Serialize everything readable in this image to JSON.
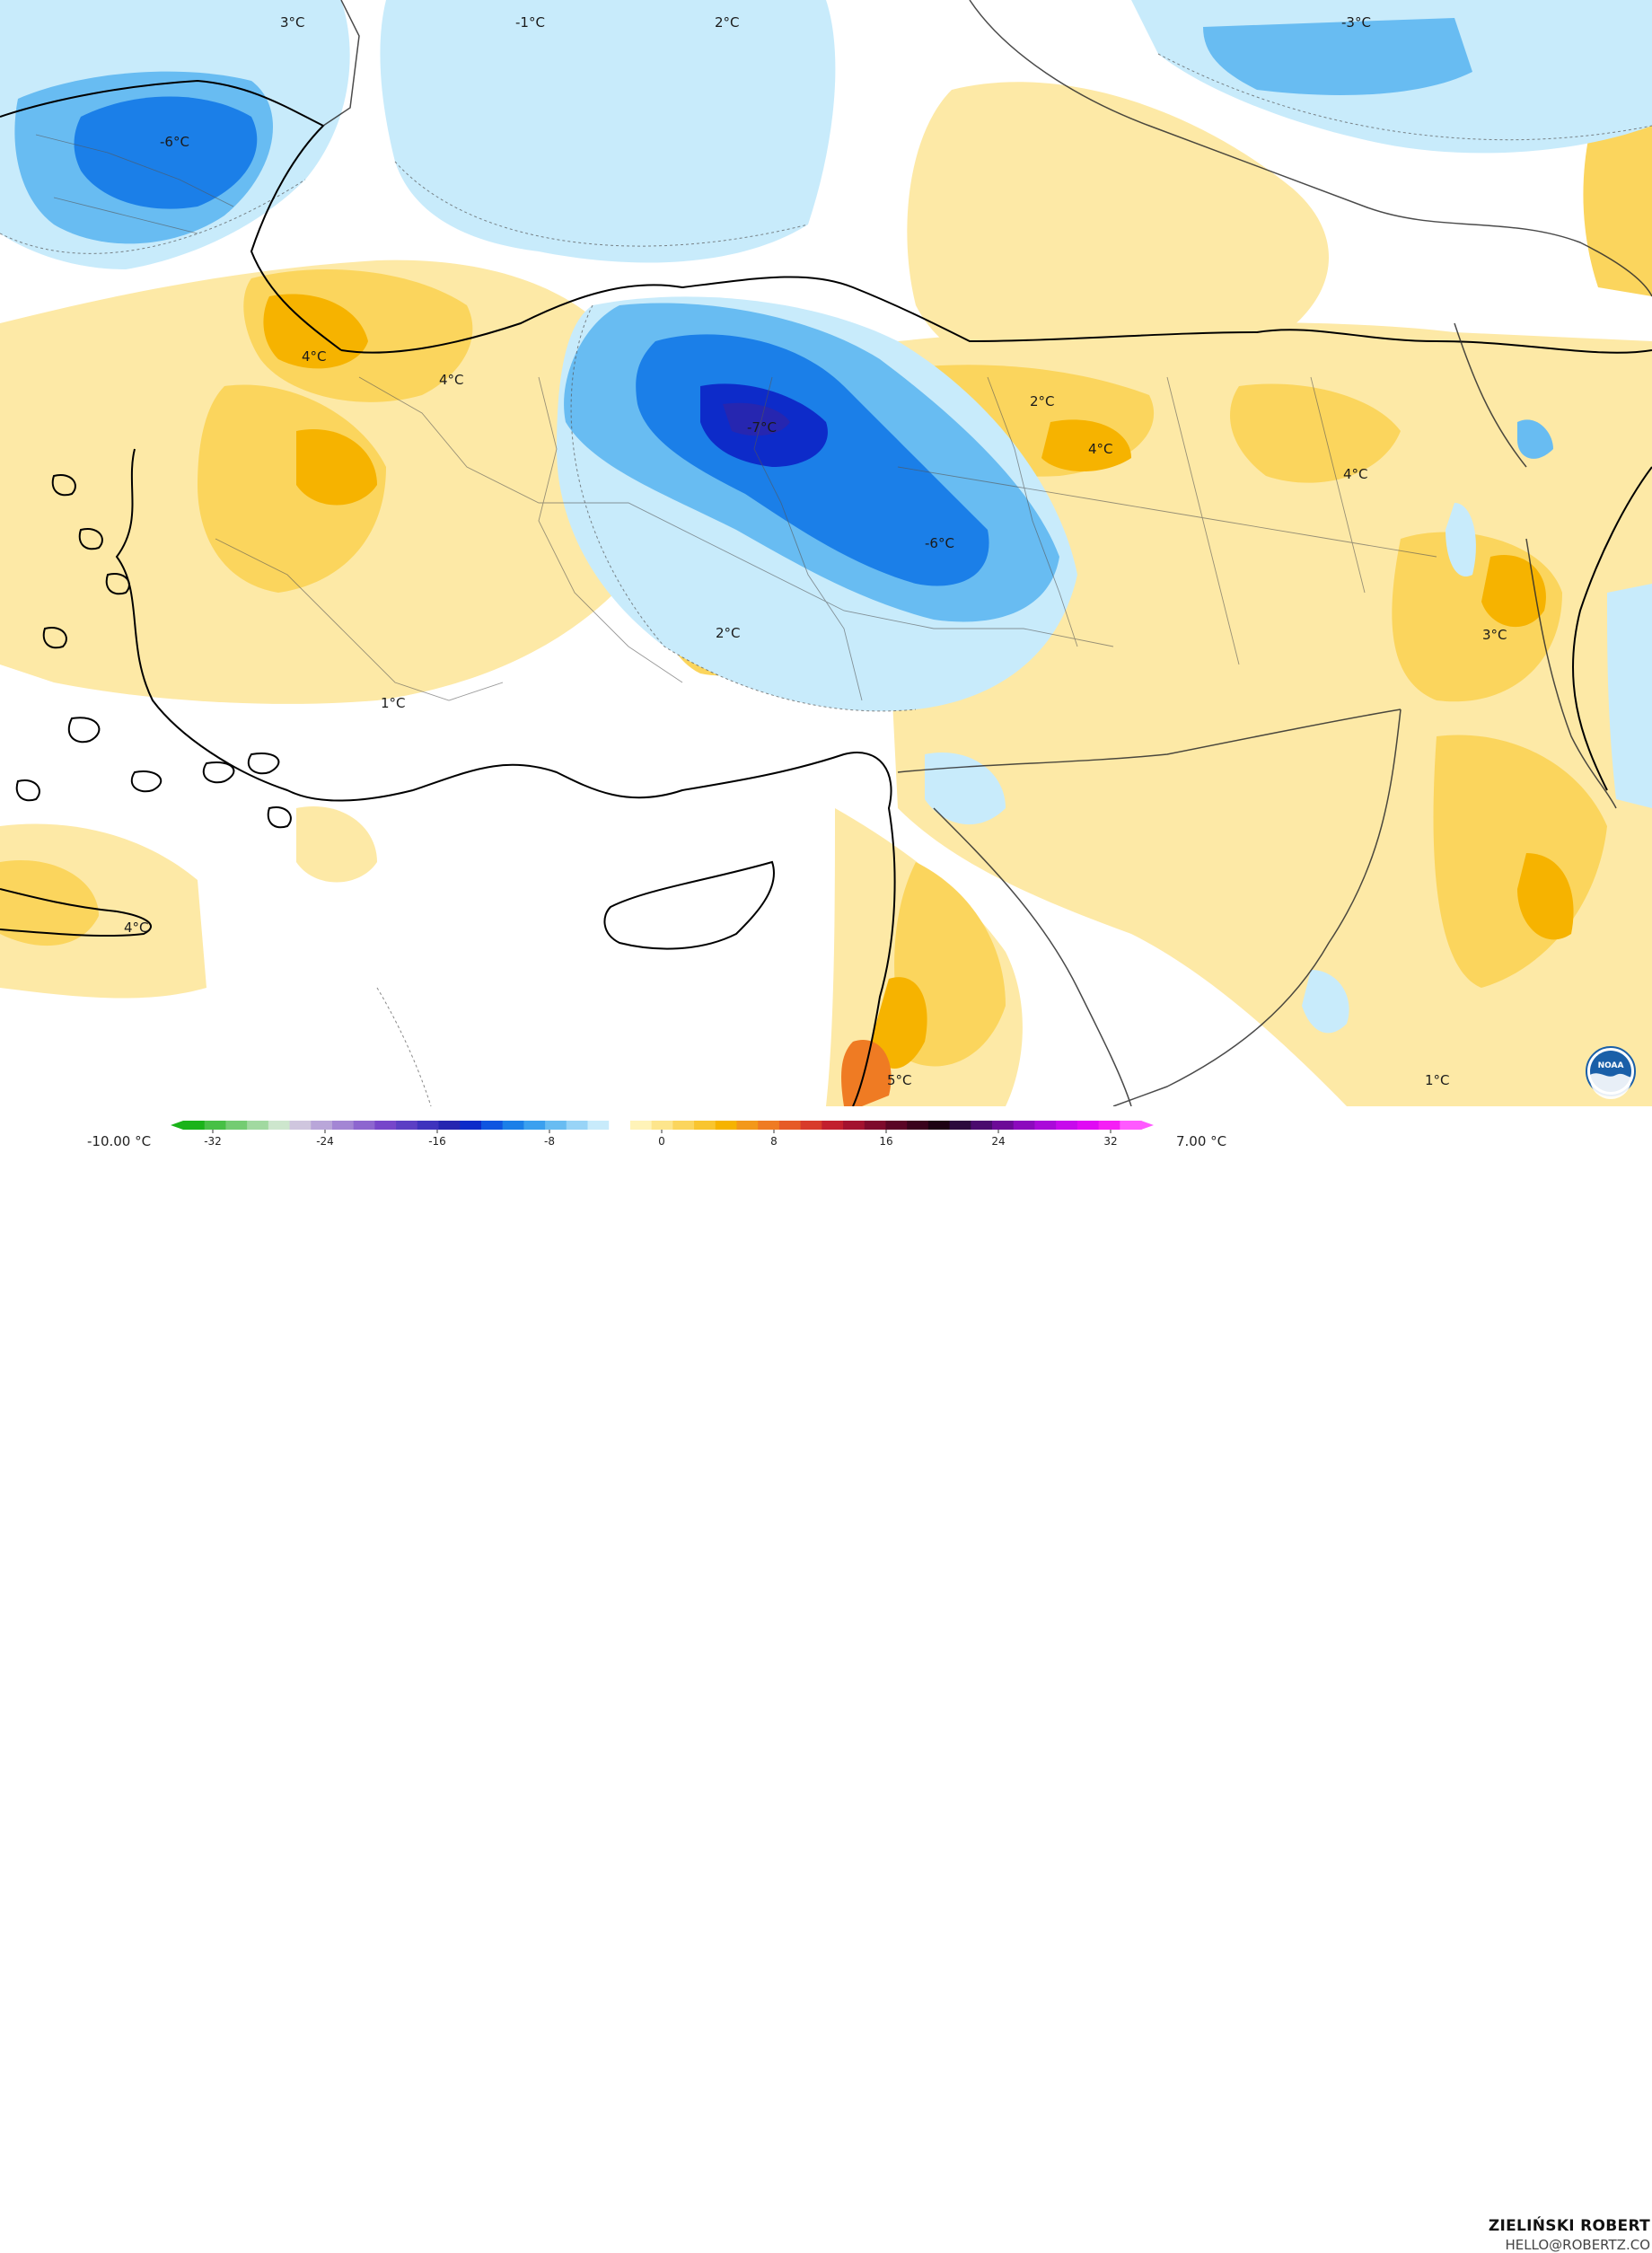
{
  "map_labels": [
    {
      "text": "3°C"
    },
    {
      "text": "-1°C"
    },
    {
      "text": "2°C"
    },
    {
      "text": "-3°C"
    },
    {
      "text": "-6°C"
    },
    {
      "text": "4°C"
    },
    {
      "text": "4°C"
    },
    {
      "text": "-7°C"
    },
    {
      "text": "2°C"
    },
    {
      "text": "4°C"
    },
    {
      "text": "4°C"
    },
    {
      "text": "-6°C"
    },
    {
      "text": "2°C"
    },
    {
      "text": "3°C"
    },
    {
      "text": "1°C"
    },
    {
      "text": "4°C"
    },
    {
      "text": "5°C"
    },
    {
      "text": "1°C"
    }
  ],
  "legend": {
    "min_label": "-10.00 °C",
    "max_label": "7.00 °C",
    "ticks": [
      "-32",
      "-24",
      "-16",
      "-8",
      "0",
      "8",
      "16",
      "24",
      "32"
    ],
    "colors": [
      "#1ab319",
      "#47c045",
      "#74cc72",
      "#a1d9a0",
      "#cde6cd",
      "#cfc6de",
      "#b9a6d9",
      "#a386d4",
      "#8d66cf",
      "#7746ca",
      "#5c3fc4",
      "#3f33bd",
      "#2626b0",
      "#0d2bc9",
      "#0f55e0",
      "#1b7fe8",
      "#3ba0ef",
      "#68bcf2",
      "#98d4f7",
      "#c8ebfb",
      "#ffffff",
      "#fff3b8",
      "#fde58c",
      "#fbd55d",
      "#f9c52f",
      "#f6b300",
      "#f3981a",
      "#ef7b23",
      "#e65a27",
      "#d83b2a",
      "#c21f2e",
      "#a3122f",
      "#7e0a2c",
      "#5a0525",
      "#3a031c",
      "#1d0112",
      "#2b0a3d",
      "#4a0b6e",
      "#6c0a97",
      "#8c0abd",
      "#aa0ad9",
      "#c70aec",
      "#e00af4",
      "#f51ff5",
      "#ff59ff"
    ]
  },
  "author": {
    "name": "ZIELIŃSKI ROBERT",
    "email": "HELLO@ROBERTZ.CO"
  },
  "logo": {
    "text": "NOAA"
  }
}
